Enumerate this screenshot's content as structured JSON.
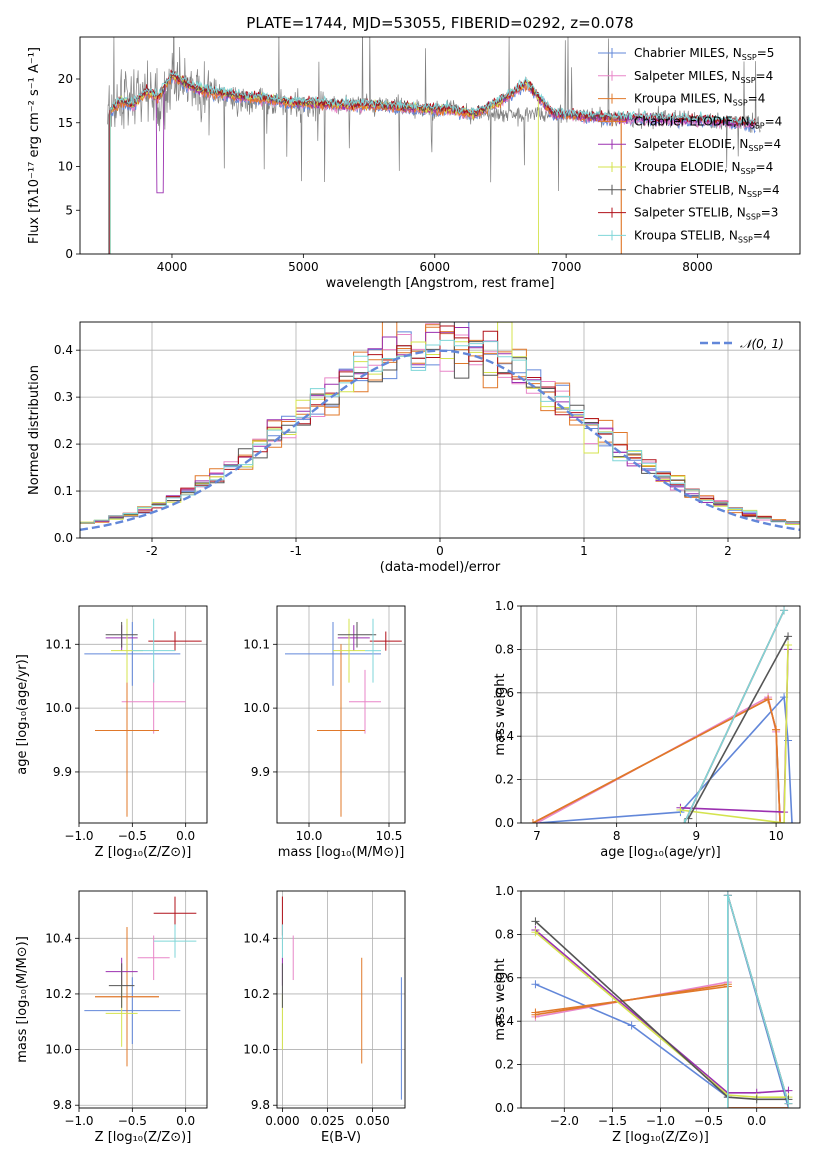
{
  "figure": {
    "title": "PLATE=1744, MJD=53055, FIBERID=0292, z=0.078"
  },
  "models": [
    {
      "name": "Chabrier MILES",
      "nssp": "5",
      "color": "#6287d9"
    },
    {
      "name": "Salpeter MILES",
      "nssp": "4",
      "color": "#e886c8"
    },
    {
      "name": "Kroupa MILES",
      "nssp": "4",
      "color": "#e0782a"
    },
    {
      "name": "Chabrier ELODIE",
      "nssp": "4",
      "color": "#e0782a"
    },
    {
      "name": "Salpeter ELODIE",
      "nssp": "4",
      "color": "#9b30b0"
    },
    {
      "name": "Kroupa ELODIE",
      "nssp": "4",
      "color": "#d4e34e"
    },
    {
      "name": "Chabrier STELIB",
      "nssp": "4",
      "color": "#555555"
    },
    {
      "name": "Salpeter STELIB",
      "nssp": "3",
      "color": "#b0101a"
    },
    {
      "name": "Kroupa STELIB",
      "nssp": "4",
      "color": "#7fd6d8"
    }
  ],
  "chart_data": [
    {
      "id": "spectrum",
      "type": "line",
      "xlabel": "wavelength [Angstrom, rest frame]",
      "ylabel": "Flux [fλ10⁻¹⁷ erg cm⁻² s⁻¹ A⁻¹]",
      "xlim": [
        3300,
        8780
      ],
      "ylim": [
        0,
        24.8
      ],
      "xticks": [
        4000,
        5000,
        6000,
        7000,
        8000
      ],
      "yticks": [
        0,
        5,
        10,
        15,
        20
      ],
      "data_x": [
        3510,
        3600,
        3700,
        3800,
        3900,
        4000,
        4100,
        4200,
        4300,
        4400,
        4500,
        4700,
        4900,
        5100,
        5300,
        5500,
        5700,
        5900,
        6100,
        6300,
        6500,
        6700,
        6900,
        7100,
        7300,
        7500,
        7700,
        7900,
        8100,
        8300,
        8450
      ],
      "data_y": [
        15.5,
        17.0,
        17.5,
        18.5,
        17.0,
        19.5,
        19.0,
        18.5,
        18.5,
        18.0,
        17.5,
        17.5,
        17.0,
        17.0,
        17.0,
        17.0,
        17.0,
        16.5,
        16.5,
        16.0,
        16.0,
        16.0,
        16.0,
        15.8,
        15.6,
        15.5,
        15.5,
        15.3,
        15.2,
        15.0,
        14.8
      ],
      "model_y": [
        15.8,
        17.5,
        17.0,
        18.5,
        18.0,
        20.5,
        19.5,
        18.8,
        18.5,
        18.3,
        18.0,
        17.8,
        17.3,
        17.2,
        17.0,
        17.0,
        16.8,
        16.6,
        16.5,
        16.0,
        17.5,
        19.5,
        16.0,
        15.8,
        15.6,
        15.5,
        15.4,
        15.3,
        15.2,
        15.0,
        14.8
      ],
      "legend": "upper right"
    },
    {
      "id": "residuals",
      "type": "bar",
      "xlabel": "(data-model)/error",
      "ylabel": "Normed distribution",
      "xlim": [
        -2.5,
        2.5
      ],
      "ylim": [
        0,
        0.46
      ],
      "xticks": [
        -2,
        -1,
        0,
        1,
        2
      ],
      "yticks": [
        0.0,
        0.1,
        0.2,
        0.3,
        0.4
      ],
      "grid": true,
      "bin_edges_start": -2.5,
      "bin_width": 0.1,
      "gauss_label": "𝒩(0, 1)",
      "legend": "upper right"
    },
    {
      "id": "age_vs_Z",
      "type": "scatter",
      "xlabel": "Z [log₁₀(Z/Z⊙)]",
      "ylabel": "age  [log₁₀(age/yr)]",
      "xlim": [
        -1.0,
        0.2
      ],
      "ylim": [
        9.82,
        10.16
      ],
      "xticks": [
        -1.0,
        -0.5,
        0.0
      ],
      "yticks": [
        9.9,
        10.0,
        10.1
      ],
      "grid": true,
      "points": [
        {
          "model": 0,
          "x": -0.5,
          "xerr": 0.45,
          "y": 10.085,
          "yerr": 0.05
        },
        {
          "model": 1,
          "x": -0.3,
          "xerr": 0.3,
          "y": 10.01,
          "yerr": 0.05
        },
        {
          "model": 2,
          "x": -0.55,
          "xerr": 0.3,
          "y": 9.965,
          "yerr": 0.135
        },
        {
          "model": 3,
          "x": -0.55,
          "xerr": 0.3,
          "y": 9.965,
          "yerr": 0.135
        },
        {
          "model": 4,
          "x": -0.6,
          "xerr": 0.15,
          "y": 10.11,
          "yerr": 0.02
        },
        {
          "model": 5,
          "x": -0.55,
          "xerr": 0.15,
          "y": 10.09,
          "yerr": 0.05
        },
        {
          "model": 6,
          "x": -0.6,
          "xerr": 0.15,
          "y": 10.115,
          "yerr": 0.02
        },
        {
          "model": 7,
          "x": -0.1,
          "xerr": 0.25,
          "y": 10.105,
          "yerr": 0.015
        },
        {
          "model": 8,
          "x": -0.3,
          "xerr": 0.2,
          "y": 10.09,
          "yerr": 0.05
        }
      ]
    },
    {
      "id": "age_vs_mass",
      "type": "scatter",
      "xlabel": "mass [log₁₀(M/M⊙)]",
      "ylabel": "",
      "xlim": [
        9.8,
        10.6
      ],
      "ylim": [
        9.82,
        10.16
      ],
      "xticks": [
        10.0,
        10.5
      ],
      "yticks": [
        9.9,
        10.0,
        10.1
      ],
      "grid": true,
      "points": [
        {
          "model": 0,
          "x": 10.15,
          "xerr": 0.3,
          "y": 10.085,
          "yerr": 0.05
        },
        {
          "model": 1,
          "x": 10.35,
          "xerr": 0.1,
          "y": 10.01,
          "yerr": 0.05
        },
        {
          "model": 2,
          "x": 10.2,
          "xerr": 0.15,
          "y": 9.965,
          "yerr": 0.135
        },
        {
          "model": 3,
          "x": 10.2,
          "xerr": 0.15,
          "y": 9.965,
          "yerr": 0.135
        },
        {
          "model": 4,
          "x": 10.28,
          "xerr": 0.1,
          "y": 10.11,
          "yerr": 0.02
        },
        {
          "model": 5,
          "x": 10.25,
          "xerr": 0.1,
          "y": 10.09,
          "yerr": 0.05
        },
        {
          "model": 6,
          "x": 10.3,
          "xerr": 0.12,
          "y": 10.115,
          "yerr": 0.02
        },
        {
          "model": 7,
          "x": 10.48,
          "xerr": 0.1,
          "y": 10.105,
          "yerr": 0.015
        },
        {
          "model": 8,
          "x": 10.4,
          "xerr": 0.05,
          "y": 10.09,
          "yerr": 0.05
        }
      ]
    },
    {
      "id": "massweight_vs_age",
      "type": "line",
      "xlabel": "age  [log₁₀(age/yr)]",
      "ylabel": "mass weight",
      "xlim": [
        6.8,
        10.3
      ],
      "ylim": [
        0,
        1.0
      ],
      "xticks": [
        7,
        8,
        9,
        10
      ],
      "yticks": [
        0.0,
        0.2,
        0.4,
        0.6,
        0.8,
        1.0
      ],
      "grid": true,
      "series": [
        {
          "model": 0,
          "x": [
            7.0,
            8.8,
            10.1,
            10.15,
            10.2
          ],
          "y": [
            0.0,
            0.05,
            0.58,
            0.38,
            0.0
          ]
        },
        {
          "model": 1,
          "x": [
            7.0,
            9.9,
            10.0,
            10.05
          ],
          "y": [
            0.0,
            0.58,
            0.42,
            0.0
          ]
        },
        {
          "model": 2,
          "x": [
            6.95,
            9.9,
            10.0,
            10.05
          ],
          "y": [
            0.0,
            0.57,
            0.43,
            0.0
          ]
        },
        {
          "model": 3,
          "x": [
            6.95,
            9.9,
            10.0,
            10.05
          ],
          "y": [
            0.0,
            0.57,
            0.43,
            0.0
          ]
        },
        {
          "model": 4,
          "x": [
            8.8,
            10.1,
            10.15
          ],
          "y": [
            0.07,
            0.05,
            0.8
          ]
        },
        {
          "model": 5,
          "x": [
            8.8,
            10.1,
            10.15
          ],
          "y": [
            0.06,
            0.0,
            0.82
          ]
        },
        {
          "model": 6,
          "x": [
            8.9,
            10.15
          ],
          "y": [
            0.02,
            0.86
          ]
        },
        {
          "model": 7,
          "x": [
            8.85,
            10.1
          ],
          "y": [
            0.0,
            0.98
          ]
        },
        {
          "model": 8,
          "x": [
            8.85,
            10.1
          ],
          "y": [
            0.0,
            0.98
          ]
        }
      ]
    },
    {
      "id": "mass_vs_Z",
      "type": "scatter",
      "xlabel": "Z [log₁₀(Z/Z⊙)]",
      "ylabel": "mass [log₁₀(M/M⊙)]",
      "xlim": [
        -1.0,
        0.2
      ],
      "ylim": [
        9.79,
        10.57
      ],
      "xticks": [
        -1.0,
        -0.5,
        0.0
      ],
      "yticks": [
        9.8,
        10.0,
        10.2,
        10.4
      ],
      "grid": true,
      "points": [
        {
          "model": 0,
          "x": -0.5,
          "xerr": 0.45,
          "y": 10.14,
          "yerr": 0.12
        },
        {
          "model": 1,
          "x": -0.3,
          "xerr": 0.15,
          "y": 10.33,
          "yerr": 0.08
        },
        {
          "model": 2,
          "x": -0.55,
          "xerr": 0.3,
          "y": 10.19,
          "yerr": 0.25
        },
        {
          "model": 3,
          "x": -0.55,
          "xerr": 0.3,
          "y": 10.19,
          "yerr": 0.25
        },
        {
          "model": 4,
          "x": -0.6,
          "xerr": 0.15,
          "y": 10.28,
          "yerr": 0.05
        },
        {
          "model": 5,
          "x": -0.6,
          "xerr": 0.15,
          "y": 10.13,
          "yerr": 0.12
        },
        {
          "model": 6,
          "x": -0.6,
          "xerr": 0.12,
          "y": 10.23,
          "yerr": 0.08
        },
        {
          "model": 7,
          "x": -0.1,
          "xerr": 0.2,
          "y": 10.49,
          "yerr": 0.06
        },
        {
          "model": 8,
          "x": -0.1,
          "xerr": 0.2,
          "y": 10.39,
          "yerr": 0.06
        }
      ]
    },
    {
      "id": "mass_vs_ebv",
      "type": "scatter",
      "xlabel": "E(B-V)",
      "ylabel": "",
      "xlim": [
        -0.003,
        0.068
      ],
      "ylim": [
        9.79,
        10.57
      ],
      "xticks": [
        0.0,
        0.025,
        0.05
      ],
      "yticks": [
        9.8,
        10.0,
        10.2,
        10.4
      ],
      "grid": true,
      "points": [
        {
          "model": 0,
          "x": 0.066,
          "xerr": 0.0,
          "y": 10.04,
          "yerr": 0.22
        },
        {
          "model": 1,
          "x": 0.006,
          "xerr": 0.0,
          "y": 10.33,
          "yerr": 0.08
        },
        {
          "model": 2,
          "x": 0.044,
          "xerr": 0.0,
          "y": 10.14,
          "yerr": 0.19
        },
        {
          "model": 4,
          "x": 0.0,
          "xerr": 0.0,
          "y": 10.28,
          "yerr": 0.05
        },
        {
          "model": 5,
          "x": 0.0,
          "xerr": 0.0,
          "y": 10.1,
          "yerr": 0.1
        },
        {
          "model": 6,
          "x": 0.0,
          "xerr": 0.0,
          "y": 10.23,
          "yerr": 0.08
        },
        {
          "model": 7,
          "x": 0.0,
          "xerr": 0.0,
          "y": 10.48,
          "yerr": 0.07
        },
        {
          "model": 8,
          "x": 0.0,
          "xerr": 0.0,
          "y": 10.39,
          "yerr": 0.06
        }
      ]
    },
    {
      "id": "massweight_vs_Z",
      "type": "line",
      "xlabel": "Z [log₁₀(Z/Z⊙)]",
      "ylabel": "mass weight",
      "xlim": [
        -2.45,
        0.45
      ],
      "ylim": [
        0,
        1.0
      ],
      "xticks": [
        -2.0,
        -1.5,
        -1.0,
        -0.5,
        0.0
      ],
      "yticks": [
        0.0,
        0.2,
        0.4,
        0.6,
        0.8,
        1.0
      ],
      "grid": true,
      "series": [
        {
          "model": 0,
          "x": [
            -2.3,
            -1.3,
            -0.3,
            -0.3,
            0.33
          ],
          "y": [
            0.57,
            0.38,
            0.05,
            0.98,
            0.0
          ]
        },
        {
          "model": 1,
          "x": [
            -2.3,
            -0.3,
            -0.3,
            0.33
          ],
          "y": [
            0.42,
            0.58,
            0.0,
            0.0
          ]
        },
        {
          "model": 2,
          "x": [
            -2.3,
            -0.3,
            -0.3,
            0.33
          ],
          "y": [
            0.43,
            0.57,
            0.0,
            0.0
          ]
        },
        {
          "model": 3,
          "x": [
            -2.3,
            -0.3,
            -0.3,
            0.33
          ],
          "y": [
            0.44,
            0.56,
            0.0,
            0.0
          ]
        },
        {
          "model": 4,
          "x": [
            -2.3,
            -0.3,
            -0.0,
            0.33
          ],
          "y": [
            0.82,
            0.07,
            0.07,
            0.08
          ]
        },
        {
          "model": 5,
          "x": [
            -2.3,
            -0.3,
            0.0,
            0.33
          ],
          "y": [
            0.81,
            0.06,
            0.05,
            0.05
          ]
        },
        {
          "model": 6,
          "x": [
            -2.3,
            -0.3,
            0.0,
            0.33
          ],
          "y": [
            0.86,
            0.05,
            0.04,
            0.04
          ]
        },
        {
          "model": 7,
          "x": [
            -0.3,
            -0.3,
            0.33
          ],
          "y": [
            0.0,
            0.98,
            0.02
          ]
        },
        {
          "model": 8,
          "x": [
            -0.3,
            -0.3,
            0.33
          ],
          "y": [
            0.0,
            0.98,
            0.02
          ]
        }
      ]
    }
  ]
}
